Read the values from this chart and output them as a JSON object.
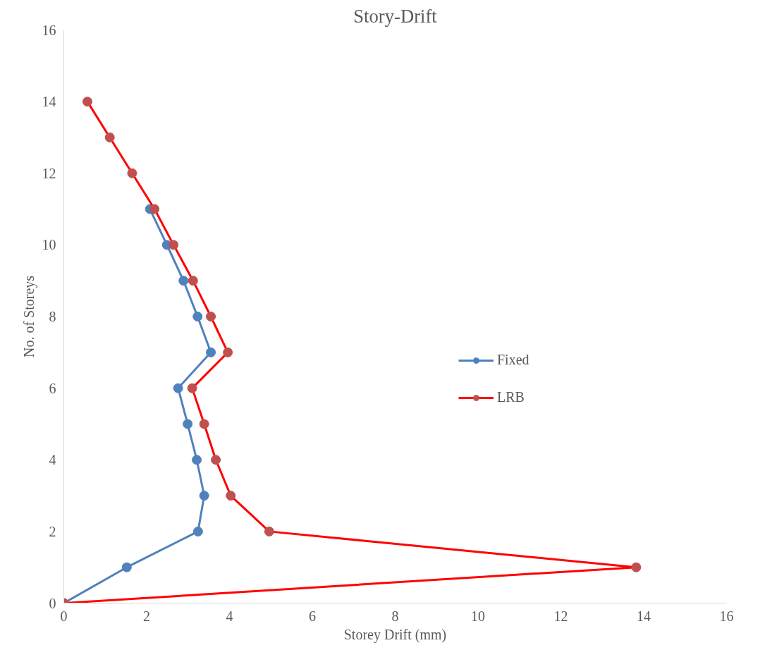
{
  "chart_data": {
    "type": "line",
    "title": "Story-Drift",
    "xlabel": "Storey Drift (mm)",
    "ylabel": "No. of Storeys",
    "xlim": [
      0,
      16
    ],
    "xticks": [
      0,
      2,
      4,
      6,
      8,
      10,
      12,
      14,
      16
    ],
    "ylim": [
      0,
      16
    ],
    "yticks": [
      0,
      2,
      4,
      6,
      8,
      10,
      12,
      14,
      16
    ],
    "grid": false,
    "legend": "right",
    "marker": "circle",
    "line_style": "solid",
    "series": [
      {
        "name": "Fixed",
        "color": "#4f81bd",
        "x": [
          0,
          1.52,
          3.24,
          3.39,
          3.21,
          2.99,
          2.76,
          3.55,
          3.23,
          2.89,
          2.49,
          2.08,
          null,
          null,
          null
        ],
        "values": [
          0,
          1,
          2,
          3,
          4,
          5,
          6,
          7,
          8,
          9,
          10,
          11,
          null,
          null,
          null
        ]
      },
      {
        "name": "LRB",
        "color": "#ff0000",
        "x": [
          0,
          13.82,
          4.96,
          4.03,
          3.67,
          3.39,
          3.1,
          3.96,
          3.55,
          3.12,
          2.65,
          2.19,
          1.65,
          1.11,
          0.57
        ],
        "values": [
          0,
          1,
          2,
          3,
          4,
          5,
          6,
          7,
          8,
          9,
          10,
          11,
          12,
          13,
          14
        ]
      }
    ]
  }
}
